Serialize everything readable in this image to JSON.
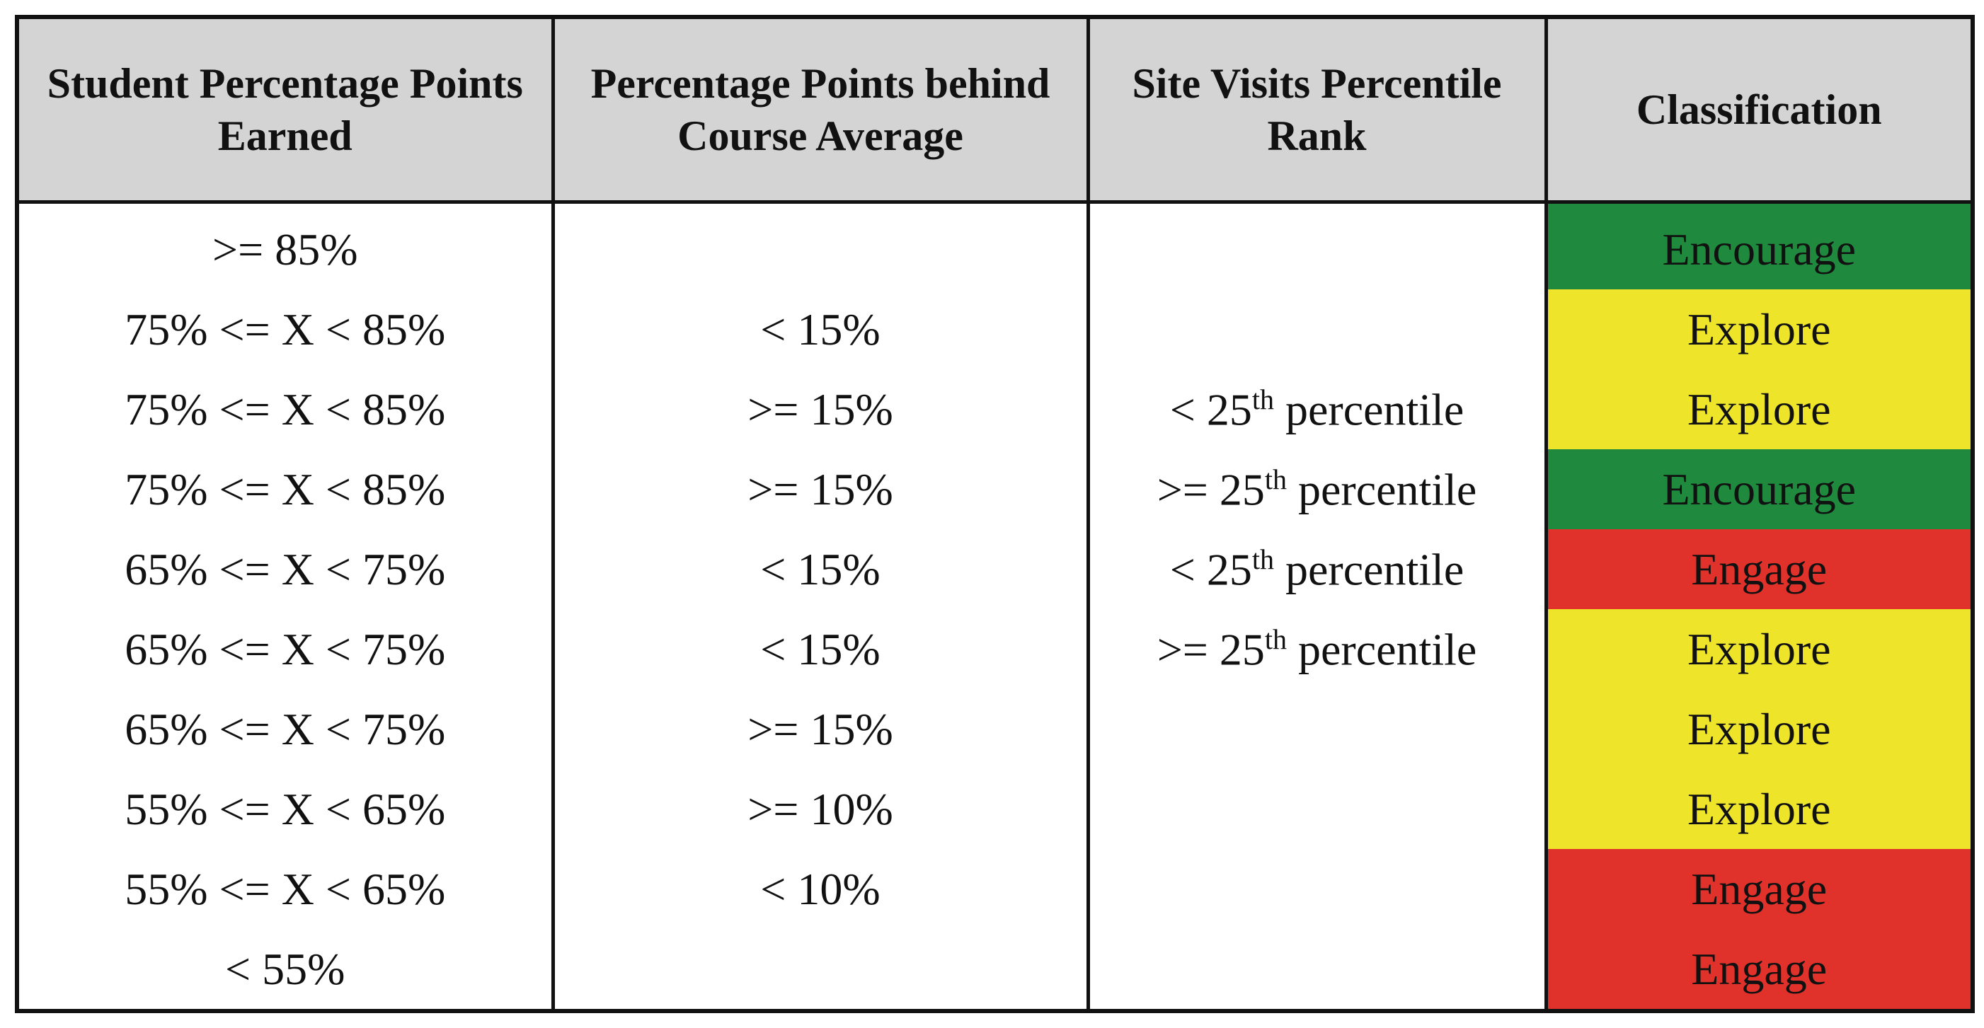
{
  "table": {
    "header": [
      "Student Percentage Points Earned",
      "Percentage Points behind Course Average",
      "Site Visits Percentile Rank",
      "Classification"
    ],
    "rows": [
      [
        ">= 85%",
        null,
        null,
        {
          "label": "Encourage",
          "color": "#1f8a3e"
        }
      ],
      [
        "75% <= X < 85%",
        "< 15%",
        null,
        {
          "label": "Explore",
          "color": "#eee52a"
        }
      ],
      [
        "75% <= X < 85%",
        ">= 15%",
        {
          "text": "< 25",
          "sup": "th",
          "rest": " percentile"
        },
        {
          "label": "Explore",
          "color": "#eee52a"
        }
      ],
      [
        "75% <= X < 85%",
        ">= 15%",
        {
          "text": ">= 25",
          "sup": "th",
          "rest": " percentile"
        },
        {
          "label": "Encourage",
          "color": "#1f8a3e"
        }
      ],
      [
        "65% <= X < 75%",
        "< 15%",
        {
          "text": "< 25",
          "sup": "th",
          "rest": " percentile"
        },
        {
          "label": "Engage",
          "color": "#e0322b"
        }
      ],
      [
        "65% <= X < 75%",
        "< 15%",
        {
          "text": ">= 25",
          "sup": "th",
          "rest": " percentile"
        },
        {
          "label": "Explore",
          "color": "#eee52a"
        }
      ],
      [
        "65% <= X < 75%",
        ">= 15%",
        null,
        {
          "label": "Explore",
          "color": "#eee52a"
        }
      ],
      [
        "55% <= X < 65%",
        ">= 10%",
        null,
        {
          "label": "Explore",
          "color": "#eee52a"
        }
      ],
      [
        "55% <= X < 65%",
        "< 10%",
        null,
        {
          "label": "Engage",
          "color": "#e0322b"
        }
      ],
      [
        "< 55%",
        null,
        null,
        {
          "label": "Engage",
          "color": "#e0322b"
        }
      ]
    ]
  }
}
